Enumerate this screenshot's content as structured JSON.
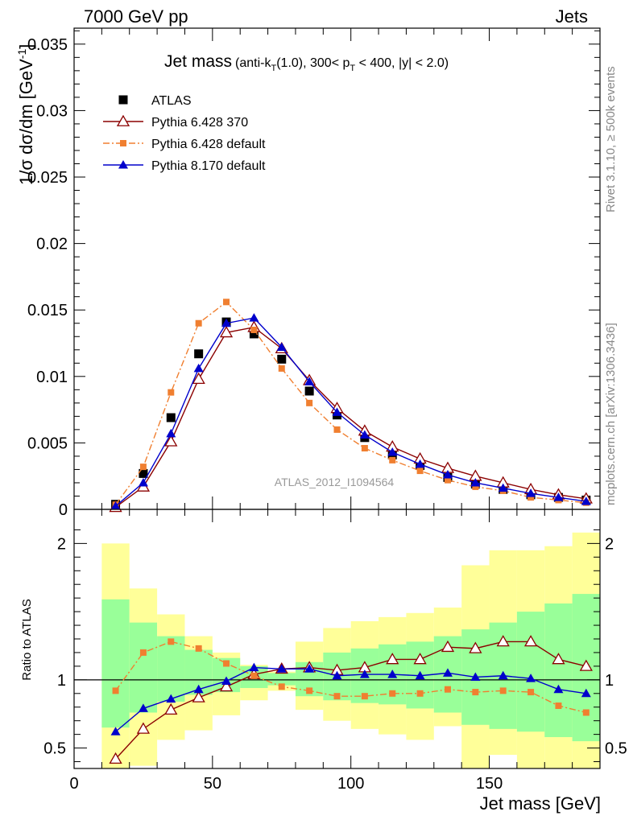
{
  "header": {
    "left": "7000 GeV pp",
    "right": "Jets"
  },
  "side_text": {
    "rivet": "Rivet 3.1.10, ≥ 500k events",
    "mcplots": "mcplots.cern.ch [arXiv:1306.3436]"
  },
  "chart_data": [
    {
      "type": "scatter",
      "panel": "main",
      "title_main": "Jet mass",
      "title_detail": "(anti-k",
      "title_sub": "T",
      "title_rest": "(1.0), 300< p",
      "title_sub2": "T",
      "title_end": " < 400, |y| < 2.0)",
      "ylabel": "1/σ dσ/dm [GeV",
      "ylabel_sup": "-1",
      "ylabel_end": "]",
      "analysis_label": "ATLAS_2012_I1094564",
      "xlim": [
        0,
        190
      ],
      "ylim": [
        0,
        0.0362
      ],
      "y_ticks": [
        0,
        0.005,
        0.01,
        0.015,
        0.02,
        0.025,
        0.03,
        0.035
      ],
      "y_tick_labels": [
        "0",
        "0.005",
        "0.01",
        "0.015",
        "0.02",
        "0.025",
        "0.03",
        "0.035"
      ],
      "x": [
        15,
        25,
        35,
        45,
        55,
        65,
        75,
        85,
        95,
        105,
        115,
        125,
        135,
        145,
        155,
        165,
        175,
        185
      ],
      "legend_position": "top-left",
      "series": [
        {
          "name": "ATLAS",
          "color": "#000000",
          "marker": "square",
          "line": "none",
          "values": [
            0.00038,
            0.0027,
            0.0069,
            0.0117,
            0.0141,
            0.0132,
            0.0113,
            0.0089,
            0.0071,
            0.0054,
            0.0041,
            0.0033,
            0.0024,
            0.0019,
            0.0015,
            0.0011,
            0.0009,
            0.0007
          ]
        },
        {
          "name": "Pythia 6.428 370",
          "color": "#8b0000",
          "marker": "open-triangle",
          "line": "solid",
          "values": [
            0.00016,
            0.0017,
            0.0051,
            0.0098,
            0.0133,
            0.0137,
            0.0121,
            0.0097,
            0.0076,
            0.0059,
            0.0047,
            0.0038,
            0.0031,
            0.0025,
            0.002,
            0.0015,
            0.0011,
            0.0008
          ]
        },
        {
          "name": "Pythia 6.428 default",
          "color": "#f07f30",
          "marker": "small-square",
          "line": "dashdot",
          "values": [
            0.00035,
            0.0032,
            0.0088,
            0.014,
            0.0156,
            0.0135,
            0.0106,
            0.008,
            0.006,
            0.0046,
            0.0037,
            0.0029,
            0.0022,
            0.0017,
            0.0014,
            0.0009,
            0.0007,
            0.0005
          ]
        },
        {
          "name": "Pythia 8.170 default",
          "color": "#0000cc",
          "marker": "triangle",
          "line": "solid",
          "values": [
            0.00024,
            0.002,
            0.0057,
            0.0106,
            0.014,
            0.0144,
            0.0122,
            0.0096,
            0.0073,
            0.0056,
            0.0043,
            0.0034,
            0.0026,
            0.002,
            0.0016,
            0.0012,
            0.0009,
            0.0006
          ]
        }
      ]
    },
    {
      "type": "line",
      "panel": "ratio",
      "ylabel": "Ratio to ATLAS",
      "xlabel": "Jet mass [GeV]",
      "xlim": [
        0,
        190
      ],
      "ylim": [
        0.35,
        2.25
      ],
      "x_ticks": [
        0,
        50,
        100,
        150
      ],
      "x_tick_labels": [
        "0",
        "50",
        "100",
        "150"
      ],
      "y_ticks": [
        0.5,
        1,
        2
      ],
      "y_tick_labels": [
        "0.5",
        "1",
        "2"
      ],
      "reference_line": 1,
      "bands": {
        "bin_edges": [
          10,
          20,
          30,
          40,
          50,
          60,
          70,
          80,
          90,
          100,
          110,
          120,
          130,
          140,
          150,
          160,
          170,
          180,
          190
        ],
        "yellow_color": "#ffff99",
        "green_color": "#99ff99",
        "yellow_lo": [
          0.35,
          0.37,
          0.56,
          0.63,
          0.74,
          0.85,
          0.92,
          0.78,
          0.7,
          0.64,
          0.6,
          0.56,
          0.66,
          0.35,
          0.45,
          0.35,
          0.35,
          0.35
        ],
        "yellow_hi": [
          2.0,
          1.67,
          1.48,
          1.32,
          1.2,
          1.11,
          1.06,
          1.28,
          1.38,
          1.43,
          1.46,
          1.49,
          1.53,
          1.84,
          1.95,
          1.95,
          1.98,
          2.08
        ],
        "green_lo": [
          0.65,
          0.76,
          0.84,
          0.89,
          0.91,
          0.94,
          0.96,
          0.88,
          0.85,
          0.83,
          0.82,
          0.79,
          0.76,
          0.67,
          0.64,
          0.62,
          0.58,
          0.55
        ],
        "green_hi": [
          1.59,
          1.42,
          1.32,
          1.22,
          1.16,
          1.1,
          1.05,
          1.13,
          1.2,
          1.23,
          1.26,
          1.28,
          1.32,
          1.37,
          1.42,
          1.5,
          1.56,
          1.63
        ]
      },
      "x": [
        15,
        25,
        35,
        45,
        55,
        65,
        75,
        85,
        95,
        105,
        115,
        125,
        135,
        145,
        155,
        165,
        175,
        185
      ],
      "series": [
        {
          "name": "Pythia 6.428 370",
          "color": "#8b0000",
          "marker": "open-triangle",
          "line": "solid",
          "values": [
            0.42,
            0.64,
            0.78,
            0.87,
            0.95,
            1.04,
            1.08,
            1.09,
            1.07,
            1.09,
            1.15,
            1.15,
            1.24,
            1.23,
            1.28,
            1.28,
            1.15,
            1.1
          ]
        },
        {
          "name": "Pythia 6.428 default",
          "color": "#f07f30",
          "marker": "small-square",
          "line": "dashdot",
          "values": [
            0.92,
            1.2,
            1.28,
            1.23,
            1.12,
            1.03,
            0.95,
            0.92,
            0.88,
            0.88,
            0.9,
            0.9,
            0.93,
            0.91,
            0.92,
            0.91,
            0.81,
            0.76
          ]
        },
        {
          "name": "Pythia 8.170 default",
          "color": "#0000cc",
          "marker": "triangle",
          "line": "solid",
          "values": [
            0.62,
            0.79,
            0.86,
            0.93,
            0.99,
            1.09,
            1.08,
            1.08,
            1.03,
            1.04,
            1.04,
            1.03,
            1.05,
            1.02,
            1.03,
            1.01,
            0.93,
            0.9
          ]
        }
      ]
    }
  ]
}
